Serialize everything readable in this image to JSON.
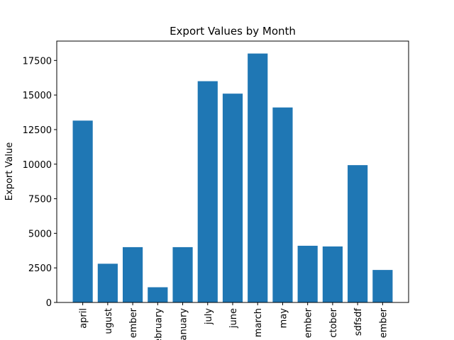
{
  "chart_data": {
    "type": "bar",
    "title": "Export Values by Month",
    "y_label": "Export Value",
    "categories": [
      "april",
      "ugust",
      "ember",
      "ebruary",
      "anuary",
      "july",
      "june",
      "march",
      "may",
      "ember",
      "ctober",
      "sdfsdf",
      "ember"
    ],
    "values": [
      13150,
      2800,
      4000,
      1100,
      4000,
      16000,
      15100,
      18000,
      14100,
      4100,
      4050,
      9930,
      2350
    ],
    "color": "#1f77b4",
    "ylim": [
      0,
      18900
    ],
    "yticks": [
      0,
      2500,
      5000,
      7500,
      10000,
      12500,
      15000,
      17500
    ],
    "grid": false
  }
}
